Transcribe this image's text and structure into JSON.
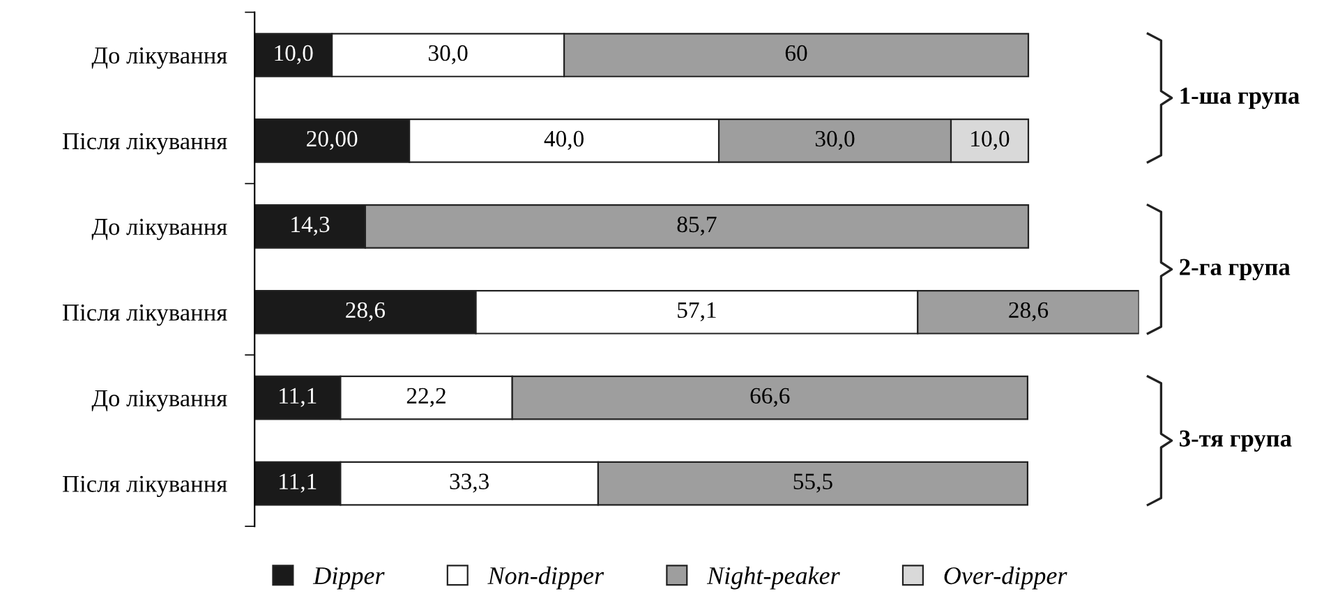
{
  "chart_data": {
    "type": "bar",
    "orientation": "horizontal",
    "stacked": true,
    "categories": [
      "До лікування",
      "Після лікування",
      "До лікування",
      "Після лікування",
      "До лікування",
      "Після лікування"
    ],
    "series": [
      {
        "name": "Dipper",
        "color": "#1a1a1a",
        "values": [
          10.0,
          20.0,
          14.3,
          28.6,
          11.1,
          11.1
        ],
        "value_labels": [
          "10,0",
          "20,00",
          "14,3",
          "28,6",
          "11,1",
          "11,1"
        ]
      },
      {
        "name": "Non-dipper",
        "color": "#ffffff",
        "values": [
          30.0,
          40.0,
          null,
          57.1,
          22.2,
          33.3
        ],
        "value_labels": [
          "30,0",
          "40,0",
          null,
          "57,1",
          "22,2",
          "33,3"
        ]
      },
      {
        "name": "Night-peaker",
        "color": "#9e9e9e",
        "values": [
          60,
          30.0,
          85.7,
          28.6,
          66.6,
          55.5
        ],
        "value_labels": [
          "60",
          "30,0",
          "85,7",
          "28,6",
          "66,6",
          "55,5"
        ]
      },
      {
        "name": "Over-dipper",
        "color": "#d9d9d9",
        "values": [
          null,
          10.0,
          null,
          null,
          null,
          null
        ],
        "value_labels": [
          null,
          "10,0",
          null,
          null,
          null,
          null
        ]
      }
    ],
    "annotations": [
      "1-ша група",
      "2-га група",
      "3-тя група"
    ],
    "legend": "bottom",
    "grid": false,
    "relative": false
  }
}
